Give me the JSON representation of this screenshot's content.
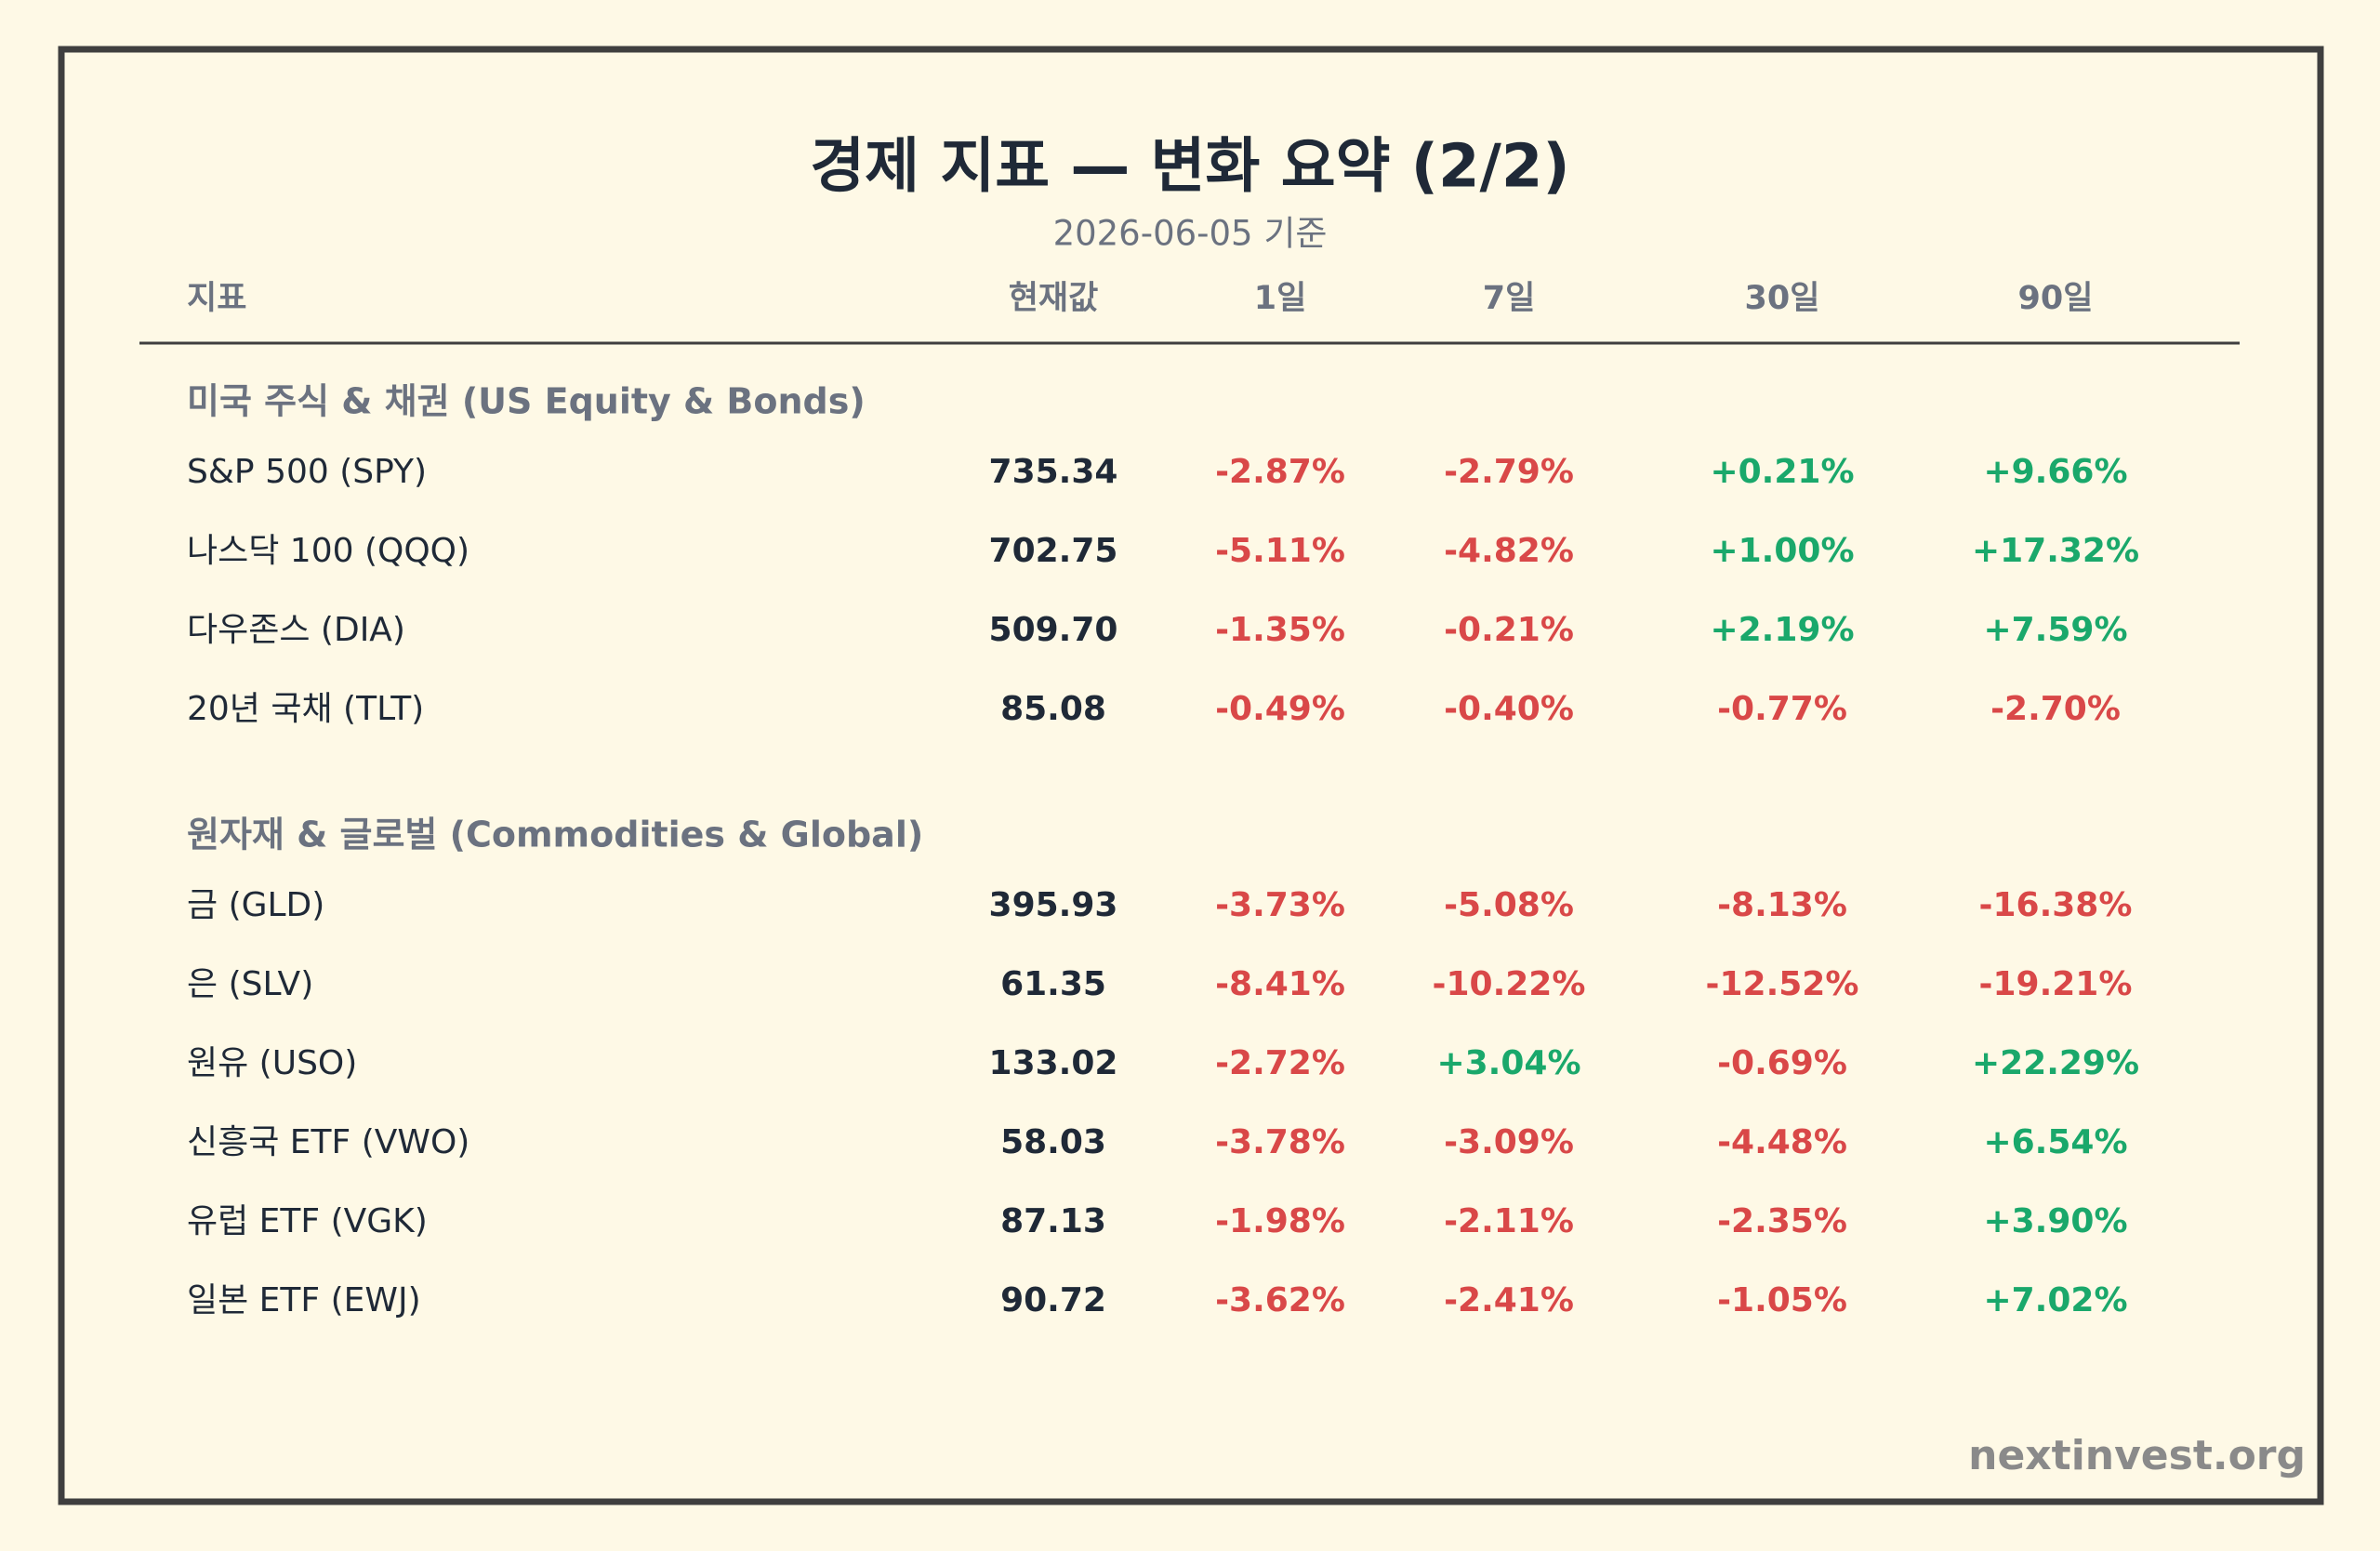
{
  "header": {
    "title": "경제 지표 — 변화 요약 (2/2)",
    "subtitle": "2026-06-05 기준"
  },
  "table": {
    "columns": [
      "지표",
      "현재값",
      "1일",
      "7일",
      "30일",
      "90일"
    ],
    "sections": [
      {
        "title": "미국 주식 & 채권 (US Equity & Bonds)",
        "rows": [
          [
            "S&P 500 (SPY)",
            "735.34",
            "-2.87%",
            "-2.79%",
            "+0.21%",
            "+9.66%"
          ],
          [
            "나스닥 100 (QQQ)",
            "702.75",
            "-5.11%",
            "-4.82%",
            "+1.00%",
            "+17.32%"
          ],
          [
            "다우존스 (DIA)",
            "509.70",
            "-1.35%",
            "-0.21%",
            "+2.19%",
            "+7.59%"
          ],
          [
            "20년 국채 (TLT)",
            "85.08",
            "-0.49%",
            "-0.40%",
            "-0.77%",
            "-2.70%"
          ]
        ]
      },
      {
        "title": "원자재 & 글로벌 (Commodities & Global)",
        "rows": [
          [
            "금 (GLD)",
            "395.93",
            "-3.73%",
            "-5.08%",
            "-8.13%",
            "-16.38%"
          ],
          [
            "은 (SLV)",
            "61.35",
            "-8.41%",
            "-10.22%",
            "-12.52%",
            "-19.21%"
          ],
          [
            "원유 (USO)",
            "133.02",
            "-2.72%",
            "+3.04%",
            "-0.69%",
            "+22.29%"
          ],
          [
            "신흥국 ETF (VWO)",
            "58.03",
            "-3.78%",
            "-3.09%",
            "-4.48%",
            "+6.54%"
          ],
          [
            "유럽 ETF (VGK)",
            "87.13",
            "-1.98%",
            "-2.11%",
            "-2.35%",
            "+3.90%"
          ],
          [
            "일본 ETF (EWJ)",
            "90.72",
            "-3.62%",
            "-2.41%",
            "-1.05%",
            "+7.02%"
          ]
        ]
      }
    ]
  },
  "footer": "nextinvest.org"
}
